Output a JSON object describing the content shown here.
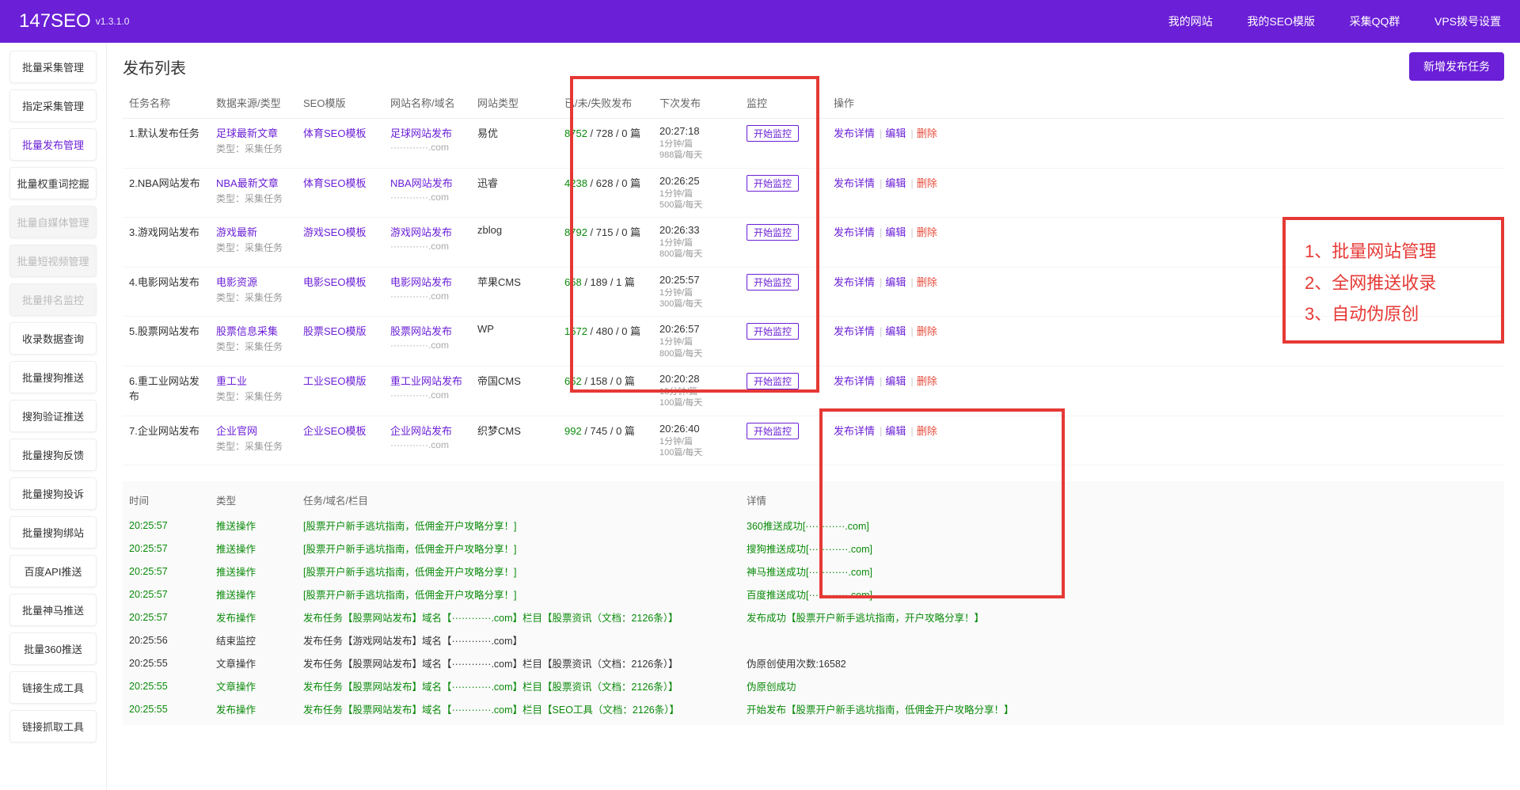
{
  "header": {
    "brand": "147SEO",
    "version": "v1.3.1.0",
    "nav": [
      "我的网站",
      "我的SEO模版",
      "采集QQ群",
      "VPS拨号设置"
    ]
  },
  "sidebar": {
    "items": [
      {
        "label": "批量采集管理",
        "state": "normal"
      },
      {
        "label": "指定采集管理",
        "state": "normal"
      },
      {
        "label": "批量发布管理",
        "state": "active"
      },
      {
        "label": "批量权重词挖掘",
        "state": "normal"
      },
      {
        "label": "批量自媒体管理",
        "state": "disabled"
      },
      {
        "label": "批量短视频管理",
        "state": "disabled"
      },
      {
        "label": "批量排名监控",
        "state": "disabled"
      },
      {
        "label": "收录数据查询",
        "state": "normal"
      },
      {
        "label": "批量搜狗推送",
        "state": "normal"
      },
      {
        "label": "搜狗验证推送",
        "state": "normal"
      },
      {
        "label": "批量搜狗反馈",
        "state": "normal"
      },
      {
        "label": "批量搜狗投诉",
        "state": "normal"
      },
      {
        "label": "批量搜狗绑站",
        "state": "normal"
      },
      {
        "label": "百度API推送",
        "state": "normal"
      },
      {
        "label": "批量神马推送",
        "state": "normal"
      },
      {
        "label": "批量360推送",
        "state": "normal"
      },
      {
        "label": "链接生成工具",
        "state": "normal"
      },
      {
        "label": "链接抓取工具",
        "state": "normal"
      }
    ]
  },
  "page": {
    "title": "发布列表",
    "new_btn": "新增发布任务"
  },
  "columns": [
    "任务名称",
    "数据来源/类型",
    "SEO模版",
    "网站名称/域名",
    "网站类型",
    "已/未/失败发布",
    "下次发布",
    "监控",
    "操作"
  ],
  "typeSub": "类型：采集任务",
  "openMonitor": "开始监控",
  "ops": {
    "detail": "发布详情",
    "edit": "编辑",
    "delete": "删除"
  },
  "rows": [
    {
      "name": "1.默认发布任务",
      "src": "足球最新文章",
      "tpl": "体育SEO模板",
      "site": "足球网站发布",
      "dom": "············.com",
      "siteType": "易优",
      "pub": "8752",
      "pubRest": " / 728 / 0 篇",
      "next": "20:27:18",
      "nextSub1": "1分钟/篇",
      "nextSub2": "988篇/每天"
    },
    {
      "name": "2.NBA网站发布",
      "src": "NBA最新文章",
      "tpl": "体育SEO模板",
      "site": "NBA网站发布",
      "dom": "············.com",
      "siteType": "迅睿",
      "pub": "4238",
      "pubRest": " / 628 / 0 篇",
      "next": "20:26:25",
      "nextSub1": "1分钟/篇",
      "nextSub2": "500篇/每天"
    },
    {
      "name": "3.游戏网站发布",
      "src": "游戏最新",
      "tpl": "游戏SEO模板",
      "site": "游戏网站发布",
      "dom": "············.com",
      "siteType": "zblog",
      "pub": "8792",
      "pubRest": " / 715 / 0 篇",
      "next": "20:26:33",
      "nextSub1": "1分钟/篇",
      "nextSub2": "800篇/每天"
    },
    {
      "name": "4.电影网站发布",
      "src": "电影资源",
      "tpl": "电影SEO模板",
      "site": "电影网站发布",
      "dom": "············.com",
      "siteType": "苹果CMS",
      "pub": "658",
      "pubRest": " / 189 / 1 篇",
      "next": "20:25:57",
      "nextSub1": "1分钟/篇",
      "nextSub2": "300篇/每天"
    },
    {
      "name": "5.股票网站发布",
      "src": "股票信息采集",
      "tpl": "股票SEO模版",
      "site": "股票网站发布",
      "dom": "············.com",
      "siteType": "WP",
      "pub": "1572",
      "pubRest": " / 480 / 0 篇",
      "next": "20:26:57",
      "nextSub1": "1分钟/篇",
      "nextSub2": "800篇/每天"
    },
    {
      "name": "6.重工业网站发布",
      "src": "重工业",
      "tpl": "工业SEO模版",
      "site": "重工业网站发布",
      "dom": "············.com",
      "siteType": "帝国CMS",
      "pub": "652",
      "pubRest": " / 158 / 0 篇",
      "next": "20:20:28",
      "nextSub1": "15分钟/篇",
      "nextSub2": "100篇/每天"
    },
    {
      "name": "7.企业网站发布",
      "src": "企业官网",
      "tpl": "企业SEO模板",
      "site": "企业网站发布",
      "dom": "············.com",
      "siteType": "织梦CMS",
      "pub": "992",
      "pubRest": " / 745 / 0 篇",
      "next": "20:26:40",
      "nextSub1": "1分钟/篇",
      "nextSub2": "100篇/每天"
    }
  ],
  "callout": {
    "l1": "1、批量网站管理",
    "l2": "2、全网推送收录",
    "l3": "3、自动伪原创"
  },
  "logCols": [
    "时间",
    "类型",
    "任务/域名/栏目",
    "详情"
  ],
  "logs": [
    {
      "t": "20:25:57",
      "type": "推送操作",
      "task": "[股票开户新手逃坑指南，低佣金开户攻略分享！]",
      "detail": "360推送成功[············.com]",
      "g": true
    },
    {
      "t": "20:25:57",
      "type": "推送操作",
      "task": "[股票开户新手逃坑指南，低佣金开户攻略分享！]",
      "detail": "搜狗推送成功[············.com]",
      "g": true
    },
    {
      "t": "20:25:57",
      "type": "推送操作",
      "task": "[股票开户新手逃坑指南，低佣金开户攻略分享！]",
      "detail": "神马推送成功[············.com]",
      "g": true
    },
    {
      "t": "20:25:57",
      "type": "推送操作",
      "task": "[股票开户新手逃坑指南，低佣金开户攻略分享！]",
      "detail": "百度推送成功[············.com]",
      "g": true
    },
    {
      "t": "20:25:57",
      "type": "发布操作",
      "task": "发布任务【股票网站发布】域名【············.com】栏目【股票资讯（文档：2126条）】",
      "detail": "发布成功【股票开户新手逃坑指南，开户攻略分享！】",
      "g": true
    },
    {
      "t": "20:25:56",
      "type": "结束监控",
      "task": "发布任务【游戏网站发布】域名【············.com】",
      "detail": "",
      "g": false
    },
    {
      "t": "20:25:55",
      "type": "文章操作",
      "task": "发布任务【股票网站发布】域名【············.com】栏目【股票资讯（文档：2126条）】",
      "detail": "伪原创使用次数:16582",
      "g": false
    },
    {
      "t": "20:25:55",
      "type": "文章操作",
      "task": "发布任务【股票网站发布】域名【············.com】栏目【股票资讯（文档：2126条）】",
      "detail": "伪原创成功",
      "g": true
    },
    {
      "t": "20:25:55",
      "type": "发布操作",
      "task": "发布任务【股票网站发布】域名【············.com】栏目【SEO工具（文档：2126条）】",
      "detail": "开始发布【股票开户新手逃坑指南，低佣金开户攻略分享！】",
      "g": true
    }
  ]
}
